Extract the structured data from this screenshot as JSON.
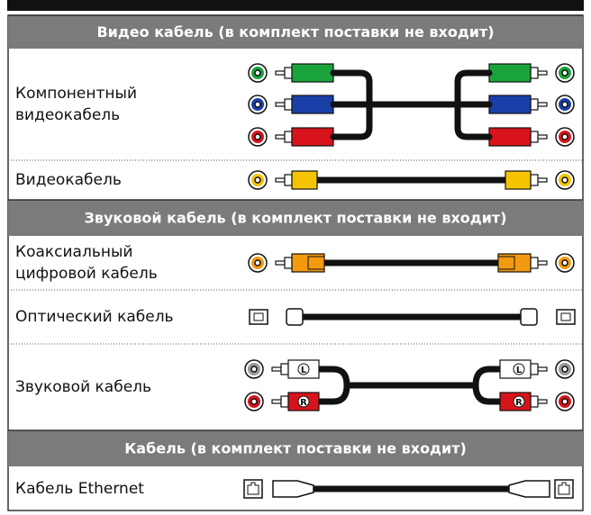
{
  "sections": [
    {
      "header": "Видео кабель (в комплект поставки не входит)",
      "rows": [
        {
          "label": [
            "Компонентный",
            "видеокабель"
          ]
        },
        {
          "label": [
            "Видеокабель"
          ]
        }
      ]
    },
    {
      "header": "Звуковой кабель (в комплект поставки не входит)",
      "rows": [
        {
          "label": [
            "Коаксиальный",
            "цифровой кабель"
          ]
        },
        {
          "label": [
            "Оптический кабель"
          ]
        },
        {
          "label": [
            "Звуковой кабель"
          ],
          "markers": [
            "L",
            "R"
          ]
        }
      ]
    },
    {
      "header": "Кабель (в комплект поставки не входит)",
      "rows": [
        {
          "label": [
            "Кабель Ethernet"
          ]
        }
      ]
    }
  ]
}
